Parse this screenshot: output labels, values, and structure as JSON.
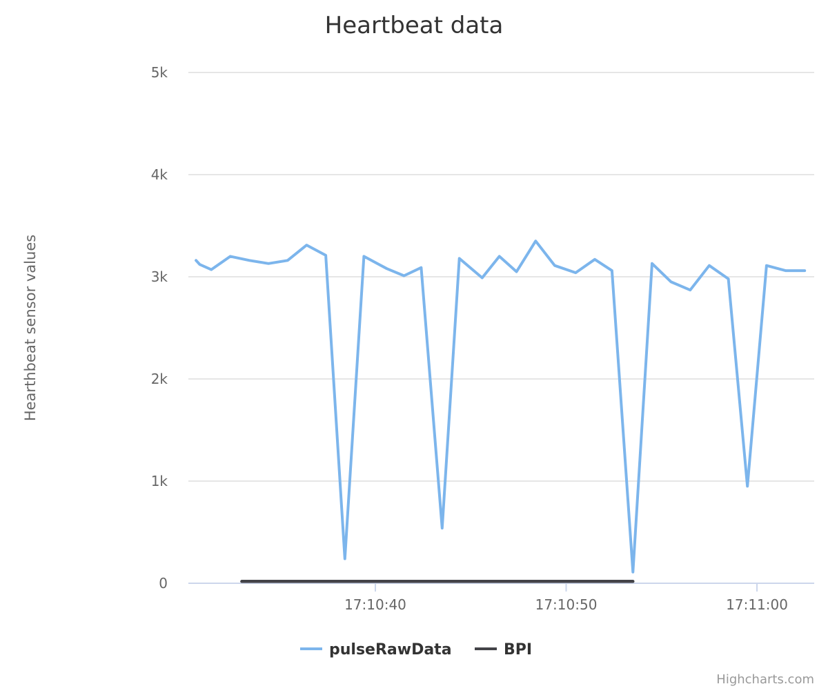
{
  "chart_data": {
    "type": "line",
    "title": "Heartbeat data",
    "ylabel": "Hearthbeat sensor values",
    "xlabel": "",
    "ylim": [
      0,
      5000
    ],
    "yticks": [
      {
        "value": 0,
        "label": "0"
      },
      {
        "value": 1000,
        "label": "1k"
      },
      {
        "value": 2000,
        "label": "2k"
      },
      {
        "value": 3000,
        "label": "3k"
      },
      {
        "value": 4000,
        "label": "4k"
      },
      {
        "value": 5000,
        "label": "5k"
      }
    ],
    "xlim_seconds": [
      30.2,
      63.0
    ],
    "xticks": [
      {
        "value": 40,
        "label": "17:10:40"
      },
      {
        "value": 50,
        "label": "17:10:50"
      },
      {
        "value": 60,
        "label": "17:11:00"
      }
    ],
    "grid": true,
    "legend": "bottom-center",
    "series": [
      {
        "name": "pulseRawData",
        "color": "#7cb5ec",
        "x": [
          30.6,
          30.8,
          31.4,
          32.4,
          33.4,
          34.4,
          35.4,
          36.4,
          37.4,
          38.4,
          39.4,
          40.6,
          41.5,
          42.4,
          43.5,
          44.4,
          45.6,
          46.5,
          47.4,
          48.4,
          49.4,
          50.5,
          51.5,
          52.4,
          53.5,
          54.5,
          55.5,
          56.5,
          57.5,
          58.5,
          59.5,
          60.5,
          61.5,
          62.5
        ],
        "y": [
          3160,
          3120,
          3070,
          3200,
          3160,
          3130,
          3160,
          3310,
          3210,
          240,
          3200,
          3080,
          3010,
          3090,
          540,
          3180,
          2990,
          3200,
          3050,
          3350,
          3110,
          3040,
          3170,
          3060,
          110,
          3130,
          2950,
          2870,
          3110,
          2980,
          950,
          3110,
          3060,
          3060
        ]
      },
      {
        "name": "BPI",
        "color": "#434348",
        "x": [
          33.0,
          43.0,
          53.5
        ],
        "y": [
          18,
          18,
          18
        ]
      }
    ]
  },
  "credits": "Highcharts.com"
}
